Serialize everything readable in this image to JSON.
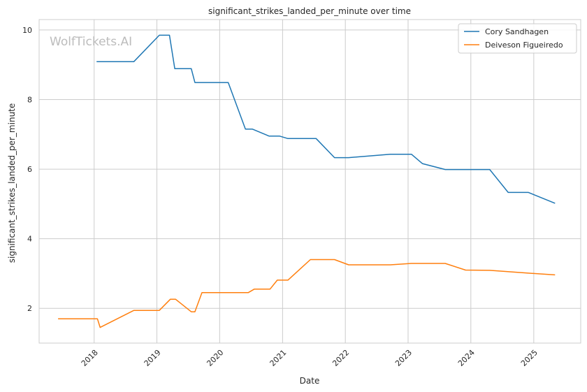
{
  "chart_data": {
    "type": "line",
    "title": "significant_strikes_landed_per_minute over time",
    "xlabel": "Date",
    "ylabel": "significant_strikes_landed_per_minute",
    "watermark": "WolfTickets.AI",
    "xlim": [
      "2017-02-15",
      "2025-10-01"
    ],
    "ylim": [
      1.0,
      10.3
    ],
    "x_ticks": [
      "2018-01-01",
      "2019-01-01",
      "2020-01-01",
      "2021-01-01",
      "2022-01-01",
      "2023-01-01",
      "2024-01-01",
      "2025-01-01"
    ],
    "x_tick_labels": [
      "2018",
      "2019",
      "2020",
      "2021",
      "2022",
      "2023",
      "2024",
      "2025"
    ],
    "y_ticks": [
      2,
      4,
      6,
      8,
      10
    ],
    "y_tick_labels": [
      "2",
      "4",
      "6",
      "8",
      "10"
    ],
    "grid": true,
    "legend_position": "top-right",
    "series": [
      {
        "name": "Cory Sandhagen",
        "color": "#1f77b4",
        "points": [
          [
            "2018-01-15",
            9.09
          ],
          [
            "2018-08-20",
            9.09
          ],
          [
            "2019-01-15",
            9.85
          ],
          [
            "2019-03-15",
            9.85
          ],
          [
            "2019-04-15",
            8.89
          ],
          [
            "2019-07-20",
            8.89
          ],
          [
            "2019-08-10",
            8.49
          ],
          [
            "2020-02-20",
            8.49
          ],
          [
            "2020-05-30",
            7.15
          ],
          [
            "2020-07-10",
            7.15
          ],
          [
            "2020-10-15",
            6.95
          ],
          [
            "2020-12-15",
            6.95
          ],
          [
            "2021-02-01",
            6.88
          ],
          [
            "2021-07-15",
            6.88
          ],
          [
            "2021-10-30",
            6.33
          ],
          [
            "2022-01-20",
            6.33
          ],
          [
            "2022-09-20",
            6.43
          ],
          [
            "2023-01-20",
            6.43
          ],
          [
            "2023-03-25",
            6.16
          ],
          [
            "2023-08-05",
            5.99
          ],
          [
            "2024-04-20",
            5.99
          ],
          [
            "2024-08-05",
            5.33
          ],
          [
            "2024-12-01",
            5.33
          ],
          [
            "2025-05-05",
            5.02
          ]
        ]
      },
      {
        "name": "Deiveson Figueiredo",
        "color": "#ff7f0e",
        "points": [
          [
            "2017-06-05",
            1.7
          ],
          [
            "2018-01-20",
            1.7
          ],
          [
            "2018-02-05",
            1.45
          ],
          [
            "2018-08-20",
            1.94
          ],
          [
            "2019-01-15",
            1.94
          ],
          [
            "2019-03-20",
            2.26
          ],
          [
            "2019-04-20",
            2.26
          ],
          [
            "2019-07-20",
            1.9
          ],
          [
            "2019-08-10",
            1.9
          ],
          [
            "2019-09-20",
            2.45
          ],
          [
            "2020-06-15",
            2.45
          ],
          [
            "2020-07-20",
            2.55
          ],
          [
            "2020-10-20",
            2.55
          ],
          [
            "2020-12-01",
            2.81
          ],
          [
            "2021-02-01",
            2.81
          ],
          [
            "2021-06-12",
            3.4
          ],
          [
            "2021-10-30",
            3.4
          ],
          [
            "2022-01-20",
            3.25
          ],
          [
            "2022-09-20",
            3.25
          ],
          [
            "2023-01-20",
            3.29
          ],
          [
            "2023-08-05",
            3.29
          ],
          [
            "2023-12-01",
            3.1
          ],
          [
            "2024-04-20",
            3.09
          ],
          [
            "2024-12-01",
            3.01
          ],
          [
            "2025-05-05",
            2.96
          ]
        ]
      }
    ]
  }
}
